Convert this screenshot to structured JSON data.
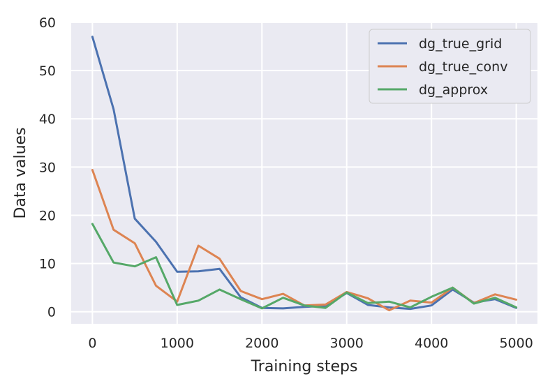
{
  "chart_data": {
    "type": "line",
    "title": "",
    "xlabel": "Training steps",
    "ylabel": "Data values",
    "xlim": [
      -250,
      5250
    ],
    "ylim": [
      -2.5,
      60
    ],
    "xticks": [
      0,
      1000,
      2000,
      3000,
      4000,
      5000
    ],
    "xtick_labels": [
      "0",
      "1000",
      "2000",
      "3000",
      "4000",
      "5000"
    ],
    "yticks": [
      0,
      10,
      20,
      30,
      40,
      50,
      60
    ],
    "ytick_labels": [
      "0",
      "10",
      "20",
      "30",
      "40",
      "50",
      "60"
    ],
    "grid": true,
    "legend_position": "top-right",
    "background": "#eaeaf2",
    "x": [
      0,
      250,
      500,
      750,
      1000,
      1250,
      1500,
      1750,
      2000,
      2250,
      2500,
      2750,
      3000,
      3250,
      3500,
      3750,
      4000,
      4250,
      4500,
      4750,
      5000
    ],
    "series": [
      {
        "name": "dg_true_grid",
        "color": "#4c72b0",
        "values": [
          57.0,
          42.0,
          19.3,
          14.5,
          8.3,
          8.4,
          8.9,
          3.0,
          0.8,
          0.7,
          1.0,
          1.2,
          3.9,
          1.4,
          0.9,
          0.6,
          1.3,
          4.6,
          1.9,
          2.6,
          0.8
        ]
      },
      {
        "name": "dg_true_conv",
        "color": "#dd8452",
        "values": [
          29.4,
          17.0,
          14.2,
          5.4,
          2.1,
          13.7,
          11.0,
          4.3,
          2.6,
          3.7,
          1.3,
          1.5,
          4.1,
          2.8,
          0.3,
          2.3,
          1.9,
          5.0,
          1.8,
          3.6,
          2.5
        ]
      },
      {
        "name": "dg_approx",
        "color": "#55a868",
        "values": [
          18.2,
          10.2,
          9.4,
          11.3,
          1.4,
          2.3,
          4.6,
          2.6,
          0.7,
          2.9,
          1.3,
          0.8,
          4.0,
          1.8,
          2.1,
          0.9,
          3.1,
          5.0,
          1.7,
          2.9,
          0.9
        ]
      }
    ]
  }
}
